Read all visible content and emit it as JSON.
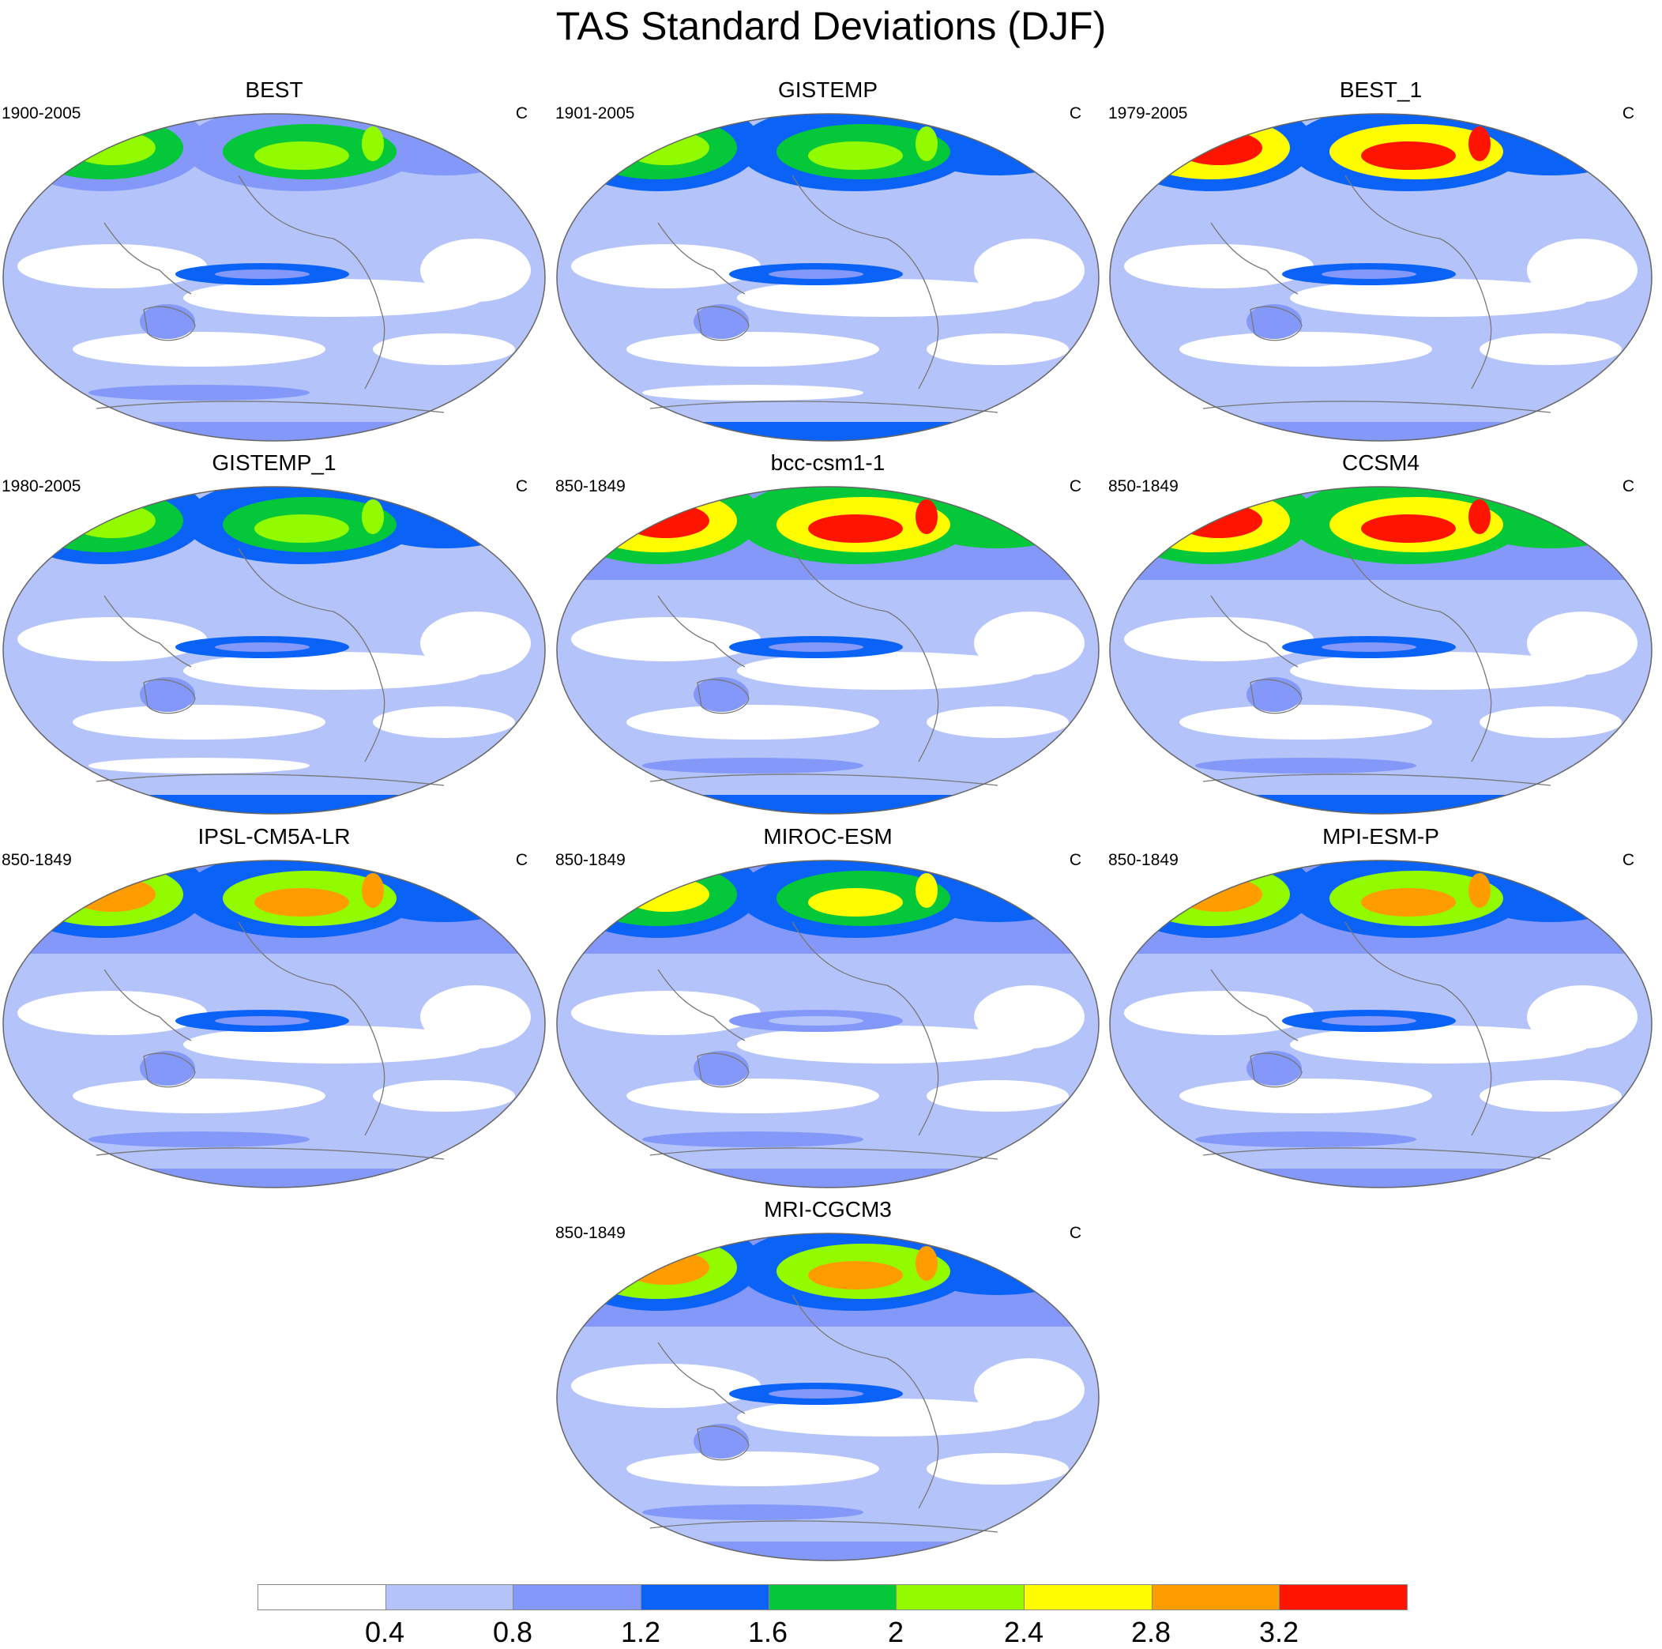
{
  "title": "TAS Standard Deviations (DJF)",
  "units": "C",
  "colors": {
    "levels": [
      "#ffffff",
      "#b4c4fa",
      "#8398f8",
      "#0a62f7",
      "#04c83a",
      "#93fb00",
      "#fffd00",
      "#ff9c00",
      "#ff1400"
    ],
    "coastline": "#777777",
    "outline": "#666666"
  },
  "panels": [
    {
      "title": "BEST",
      "period": "1900-2005",
      "units": "C",
      "profile": "obs"
    },
    {
      "title": "GISTEMP",
      "period": "1901-2005",
      "units": "C",
      "profile": "obs_smooth"
    },
    {
      "title": "BEST_1",
      "period": "1979-2005",
      "units": "C",
      "profile": "obs_recent"
    },
    {
      "title": "GISTEMP_1",
      "period": "1980-2005",
      "units": "C",
      "profile": "obs_smooth"
    },
    {
      "title": "bcc-csm1-1",
      "period": "850-1849",
      "units": "C",
      "profile": "model_hot"
    },
    {
      "title": "CCSM4",
      "period": "850-1849",
      "units": "C",
      "profile": "model_hot"
    },
    {
      "title": "IPSL-CM5A-LR",
      "period": "850-1849",
      "units": "C",
      "profile": "model_mid"
    },
    {
      "title": "MIROC-ESM",
      "period": "850-1849",
      "units": "C",
      "profile": "model_cool"
    },
    {
      "title": "MPI-ESM-P",
      "period": "850-1849",
      "units": "C",
      "profile": "model_mid"
    },
    {
      "title": "MRI-CGCM3",
      "period": "850-1849",
      "units": "C",
      "profile": "model_mid"
    }
  ],
  "colorbar": {
    "labels": [
      "0.4",
      "0.8",
      "1.2",
      "1.6",
      "2",
      "2.4",
      "2.8",
      "3.2"
    ]
  }
}
